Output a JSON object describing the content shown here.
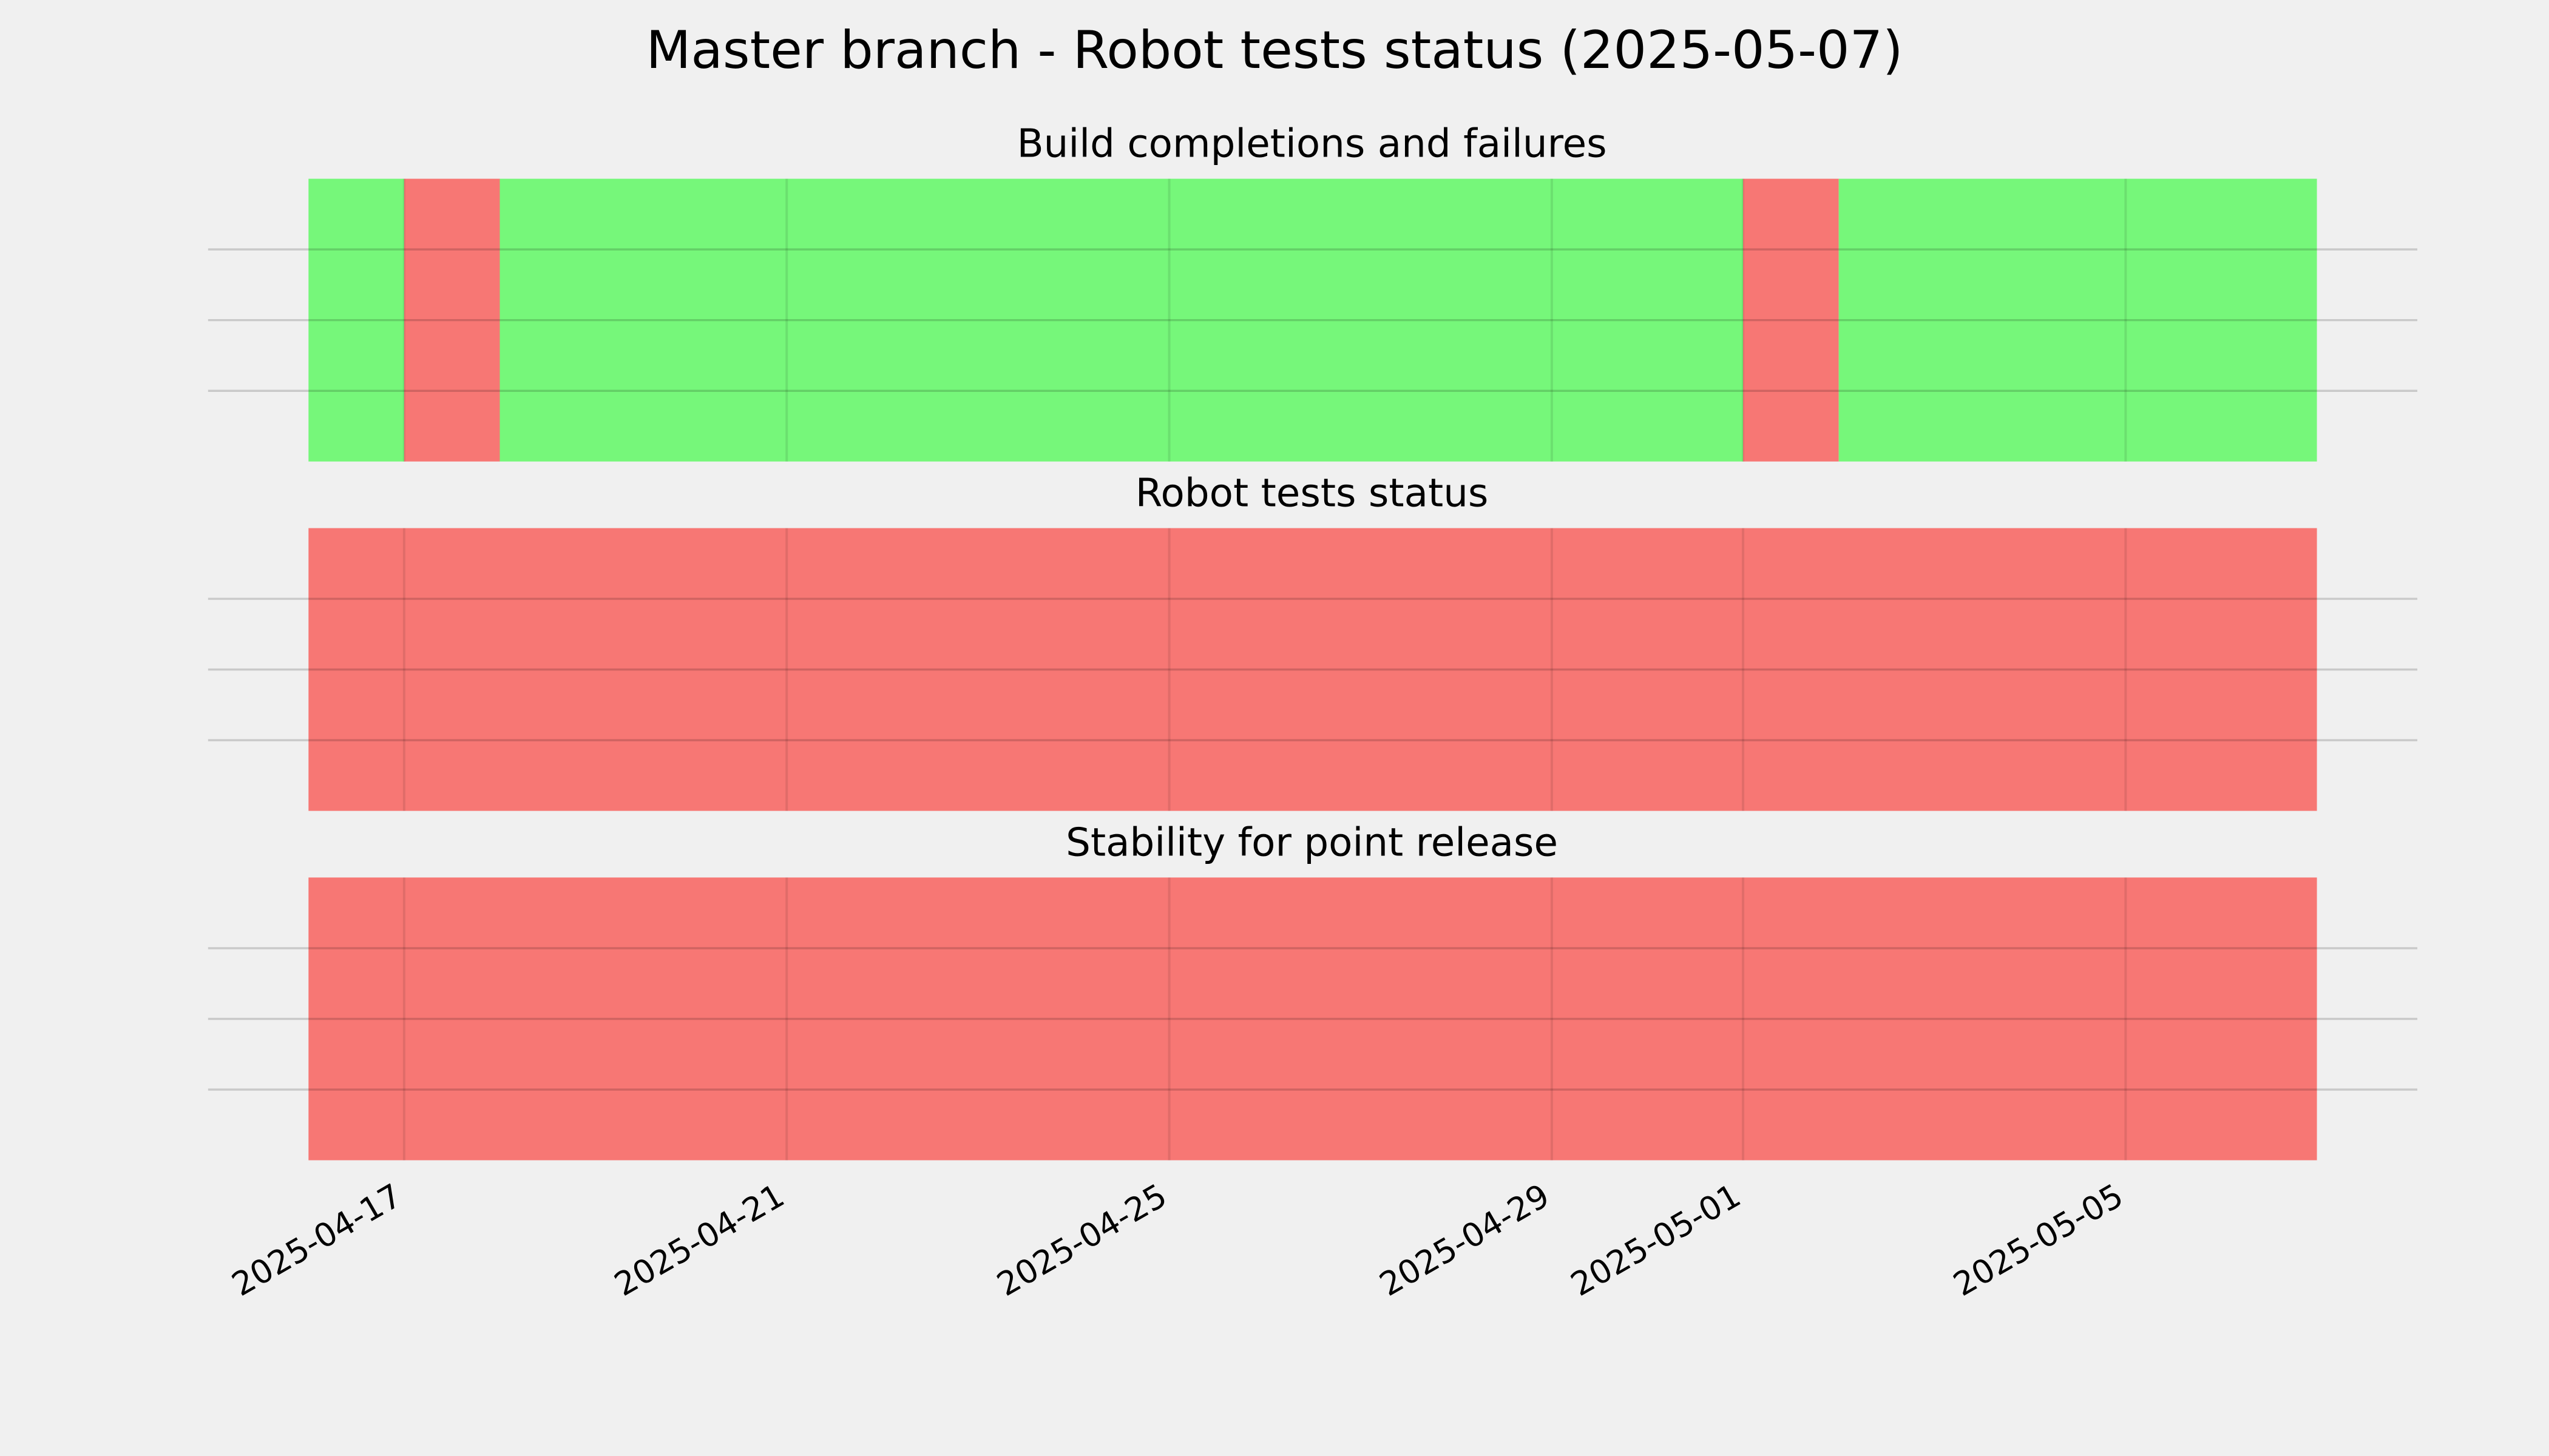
{
  "chart_data": {
    "type": "timeline",
    "title": "Master branch - Robot tests status (2025-05-07)",
    "xticks": [
      "2025-04-17",
      "2025-04-21",
      "2025-04-25",
      "2025-04-29",
      "2025-05-01",
      "2025-05-05"
    ],
    "ylim": [
      0,
      1
    ],
    "yticks": [
      0.25,
      0.5,
      0.75
    ],
    "grid": true,
    "panels": [
      {
        "title": "Build completions and failures",
        "spans": [
          {
            "start": "2025-04-16",
            "end": "2025-04-17",
            "color": "#76f77a"
          },
          {
            "start": "2025-04-17",
            "end": "2025-04-18",
            "color": "#f77774"
          },
          {
            "start": "2025-04-18",
            "end": "2025-05-01",
            "color": "#76f77a"
          },
          {
            "start": "2025-05-01",
            "end": "2025-05-02",
            "color": "#f77774"
          },
          {
            "start": "2025-05-02",
            "end": "2025-05-07",
            "color": "#76f77a"
          }
        ]
      },
      {
        "title": "Robot tests status",
        "spans": [
          {
            "start": "2025-04-16",
            "end": "2025-05-07",
            "color": "#f77774"
          }
        ]
      },
      {
        "title": "Stability for point release",
        "spans": [
          {
            "start": "2025-04-16",
            "end": "2025-05-07",
            "color": "#f77774"
          }
        ]
      }
    ]
  }
}
